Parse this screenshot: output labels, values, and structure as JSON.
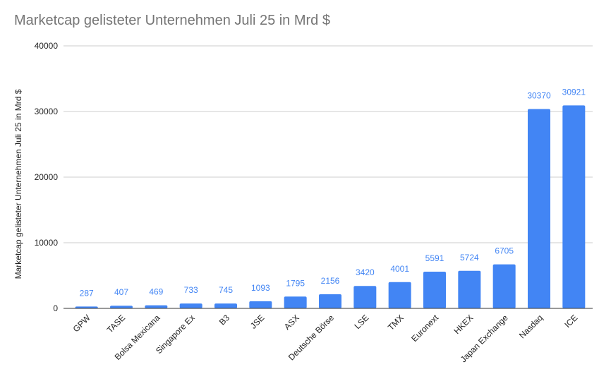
{
  "chart_data": {
    "type": "bar",
    "title": "Marketcap gelisteter Unternehmen Juli 25 in Mrd $",
    "xlabel": "",
    "ylabel": "Marketcap gelisteter Unternehmen Juli 25 in Mrd $",
    "ylim": [
      0,
      40000
    ],
    "yticks": [
      0,
      10000,
      20000,
      30000,
      40000
    ],
    "grid": true,
    "legend": "none",
    "bar_color": "#4285f4",
    "categories": [
      "GPW",
      "TASE",
      "Bolsa Mexicana",
      "Singapore Ex",
      "B3",
      "JSE",
      "ASX",
      "Deutsche Börse",
      "LSE",
      "TMX",
      "Euronext",
      "HKEX",
      "Japan Exchange",
      "Nasdaq",
      "ICE"
    ],
    "values": [
      287,
      407,
      469,
      733,
      745,
      1093,
      1795,
      2156,
      3420,
      4001,
      5591,
      5724,
      6705,
      30370,
      30921
    ]
  }
}
